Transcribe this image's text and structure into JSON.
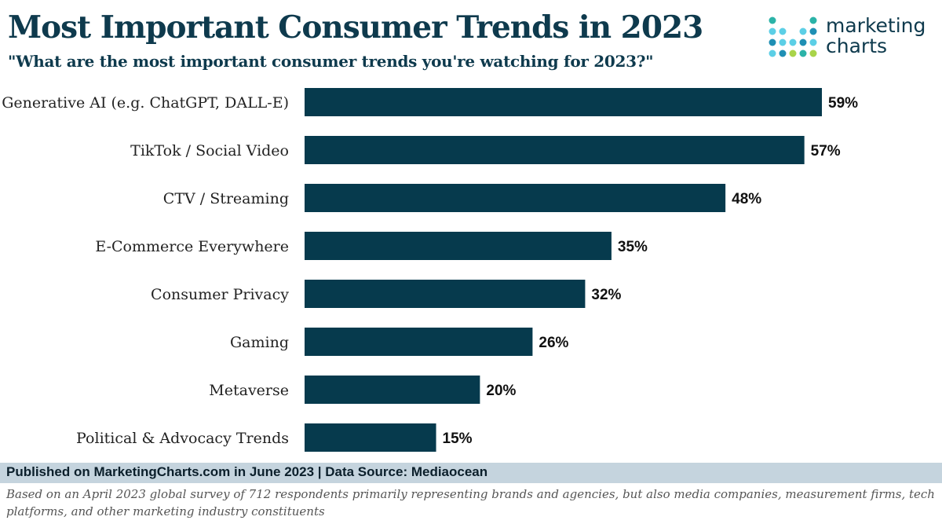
{
  "header": {
    "title": "Most Important Consumer Trends in 2023",
    "subtitle": "\"What are the most important consumer trends you're watching for 2023?\""
  },
  "logo": {
    "line1": "marketing",
    "line2": "charts",
    "dot_colors": [
      "#2bb3a8",
      "#5ccfe6",
      "#a9d44a",
      "#1f8fb4"
    ]
  },
  "colors": {
    "bar": "#063a4d",
    "title": "#0e3a4d",
    "footer_band": "#c5d4de"
  },
  "chart_data": {
    "type": "bar",
    "orientation": "horizontal",
    "title": "Most Important Consumer Trends in 2023",
    "subtitle": "\"What are the most important consumer trends you're watching for 2023?\"",
    "categories": [
      "Generative AI (e.g. ChatGPT, DALL-E)",
      "TikTok / Social Video",
      "CTV / Streaming",
      "E-Commerce Everywhere",
      "Consumer Privacy",
      "Gaming",
      "Metaverse",
      "Political & Advocacy Trends"
    ],
    "values": [
      59,
      57,
      48,
      35,
      32,
      26,
      20,
      15
    ],
    "value_labels": [
      "59%",
      "57%",
      "48%",
      "35%",
      "32%",
      "26%",
      "20%",
      "15%"
    ],
    "xlim": [
      0,
      59
    ],
    "unit": "%",
    "grid": false,
    "legend": "none"
  },
  "footer": {
    "published": "Published on MarketingCharts.com in June 2023 | Data Source: Mediaocean",
    "note": "Based on an April 2023 global survey of 712 respondents primarily representing brands and agencies, but also media companies, measurement firms, tech platforms, and other marketing industry constituents"
  }
}
